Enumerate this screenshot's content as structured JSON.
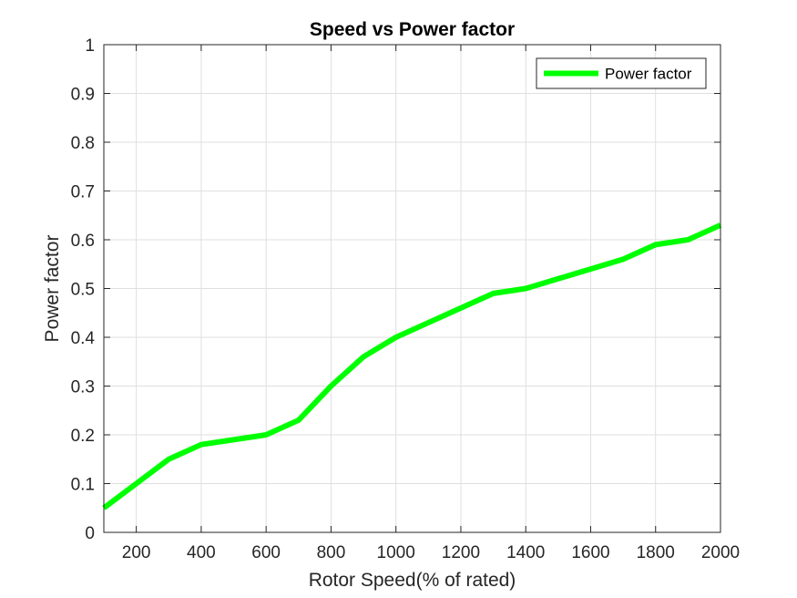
{
  "chart_data": {
    "type": "line",
    "title": "Speed vs Power factor",
    "xlabel": "Rotor Speed(% of rated)",
    "ylabel": "Power factor",
    "xlim": [
      100,
      2000
    ],
    "ylim": [
      0,
      1
    ],
    "xticks": [
      200,
      400,
      600,
      800,
      1000,
      1200,
      1400,
      1600,
      1800,
      2000
    ],
    "yticks": [
      0,
      0.1,
      0.2,
      0.3,
      0.4,
      0.5,
      0.6,
      0.7,
      0.8,
      0.9,
      1
    ],
    "ytick_labels": [
      "0",
      "0.1",
      "0.2",
      "0.3",
      "0.4",
      "0.5",
      "0.6",
      "0.7",
      "0.8",
      "0.9",
      "1"
    ],
    "grid": true,
    "legend_position": "top-right",
    "series": [
      {
        "name": "Power factor",
        "color": "#00ff00",
        "x": [
          100,
          200,
          300,
          400,
          500,
          600,
          700,
          800,
          900,
          1000,
          1100,
          1200,
          1300,
          1400,
          1500,
          1600,
          1700,
          1800,
          1900,
          2000
        ],
        "y": [
          0.05,
          0.1,
          0.15,
          0.18,
          0.19,
          0.2,
          0.23,
          0.3,
          0.36,
          0.4,
          0.43,
          0.46,
          0.49,
          0.5,
          0.52,
          0.54,
          0.56,
          0.59,
          0.6,
          0.63
        ]
      }
    ]
  }
}
